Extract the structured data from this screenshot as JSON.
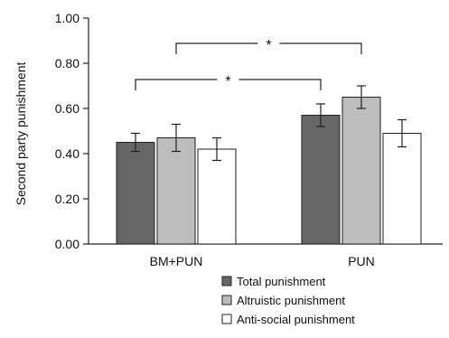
{
  "chart_data": {
    "type": "bar",
    "ylabel": "Second party punishment",
    "xlabel": "",
    "ylim": [
      0,
      1.0
    ],
    "yticks": [
      "0.00",
      "0.20",
      "0.40",
      "0.60",
      "0.80",
      "1.00"
    ],
    "categories": [
      "BM+PUN",
      "PUN"
    ],
    "series": [
      {
        "name": "Total punishment",
        "values": [
          0.45,
          0.57
        ],
        "errors": [
          0.04,
          0.05
        ],
        "color": "#666666"
      },
      {
        "name": "Altruistic punishment",
        "values": [
          0.47,
          0.65
        ],
        "errors": [
          0.06,
          0.05
        ],
        "color": "#bdbdbd"
      },
      {
        "name": "Anti-social punishment",
        "values": [
          0.42,
          0.49
        ],
        "errors": [
          0.05,
          0.06
        ],
        "color": "#ffffff"
      }
    ],
    "significance": [
      {
        "label": "*",
        "from": {
          "category": 0,
          "series": 0
        },
        "to": {
          "category": 1,
          "series": 0
        }
      },
      {
        "label": "*",
        "from": {
          "category": 0,
          "series": 1
        },
        "to": {
          "category": 1,
          "series": 1
        }
      }
    ],
    "legend_position": "bottom-center"
  }
}
